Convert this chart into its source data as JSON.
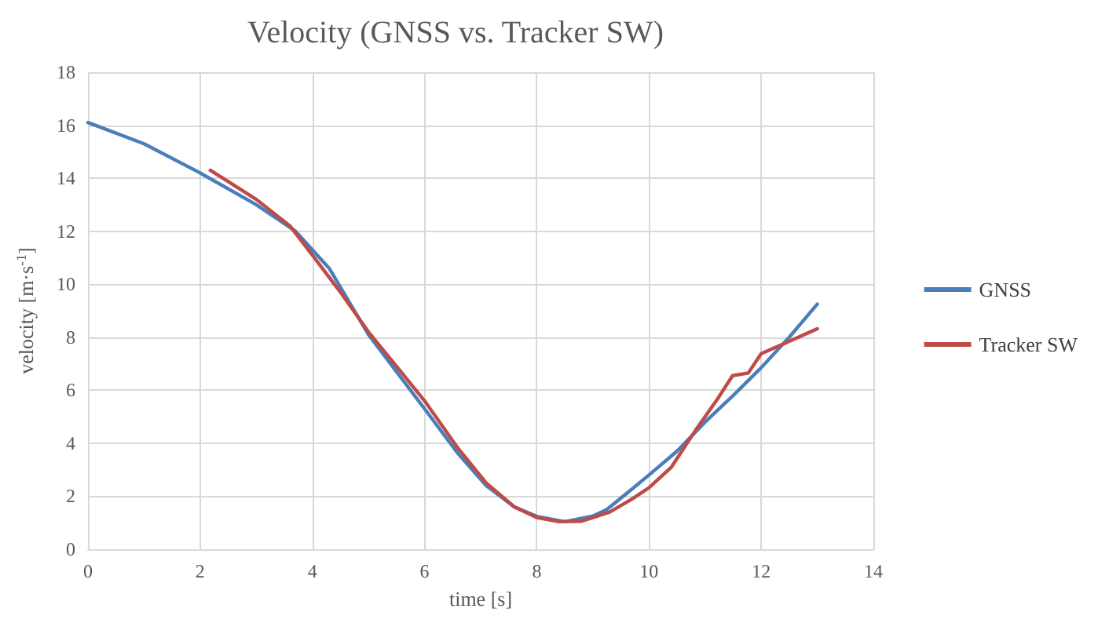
{
  "chart_data": {
    "type": "line",
    "title": "Velocity (GNSS vs. Tracker SW)",
    "xlabel": "time [s]",
    "ylabel": "velocity [m·s$^{-1}$]",
    "xlim": [
      0,
      14
    ],
    "xticks": [
      0,
      2,
      4,
      6,
      8,
      10,
      12,
      14
    ],
    "ylim": [
      0,
      18
    ],
    "yticks": [
      0,
      2,
      4,
      6,
      8,
      10,
      12,
      14,
      16,
      18
    ],
    "grid": true,
    "legend": "right",
    "marker": "none",
    "line_style": "solid",
    "series": [
      {
        "name": "GNSS",
        "color": "#4a7ebb",
        "x": [
          0,
          1,
          2,
          3,
          3.7,
          4.3,
          5,
          6,
          6.6,
          7.1,
          7.6,
          8,
          8.5,
          9,
          9.25,
          9.6,
          10,
          10.5,
          11,
          11.5,
          12,
          12.5,
          13
        ],
        "values": [
          16.1,
          15.3,
          14.2,
          13.0,
          12.0,
          10.6,
          8.1,
          5.3,
          3.6,
          2.4,
          1.6,
          1.24,
          1.04,
          1.25,
          1.5,
          2.1,
          2.8,
          3.7,
          4.8,
          5.8,
          6.85,
          8.0,
          9.25
        ]
      },
      {
        "name": "Tracker SW",
        "color": "#be4b48",
        "x": [
          2.18,
          3,
          3.6,
          4,
          4.5,
          5,
          5.5,
          6,
          6.6,
          7.1,
          7.6,
          8,
          8.4,
          8.8,
          9.3,
          9.7,
          10,
          10.4,
          10.83,
          11.2,
          11.49,
          11.77,
          12,
          12.42,
          13
        ],
        "values": [
          14.3,
          13.2,
          12.2,
          11.1,
          9.7,
          8.2,
          6.9,
          5.6,
          3.8,
          2.5,
          1.6,
          1.2,
          1.04,
          1.06,
          1.4,
          1.9,
          2.32,
          3.1,
          4.49,
          5.6,
          6.55,
          6.65,
          7.38,
          7.77,
          8.32
        ]
      }
    ]
  }
}
